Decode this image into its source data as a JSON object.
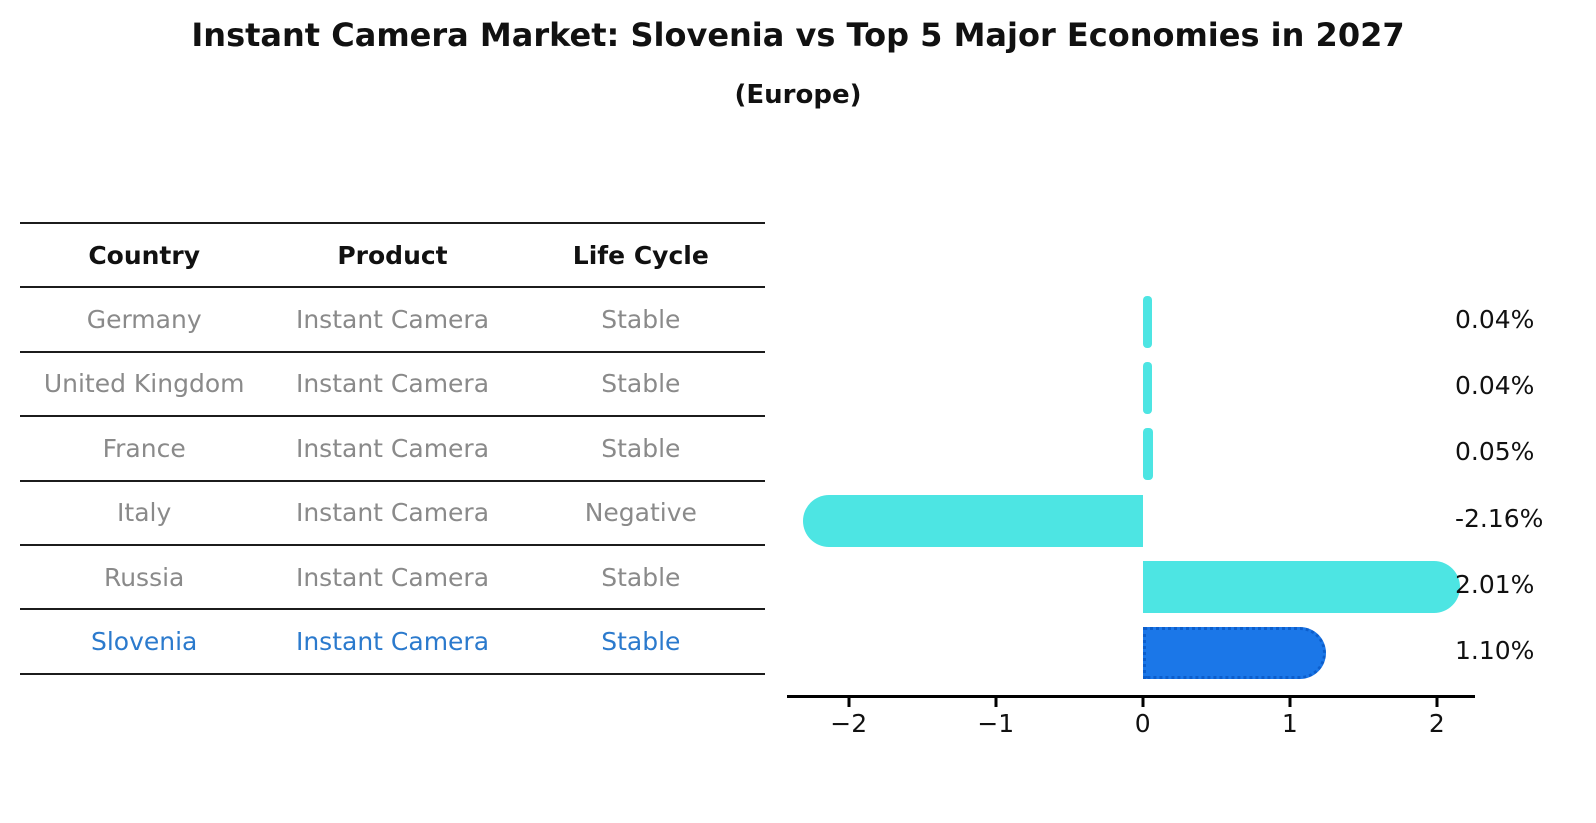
{
  "header": {
    "title": "Instant Camera Market: Slovenia vs Top 5 Major Economies in 2027",
    "subtitle": "(Europe)"
  },
  "table": {
    "headers": [
      "Country",
      "Product",
      "Life Cycle"
    ],
    "rows": [
      {
        "country": "Germany",
        "product": "Instant Camera",
        "life_cycle": "Stable"
      },
      {
        "country": "United Kingdom",
        "product": "Instant Camera",
        "life_cycle": "Stable"
      },
      {
        "country": "France",
        "product": "Instant Camera",
        "life_cycle": "Stable"
      },
      {
        "country": "Italy",
        "product": "Instant Camera",
        "life_cycle": "Negative"
      },
      {
        "country": "Russia",
        "product": "Instant Camera",
        "life_cycle": "Stable"
      },
      {
        "country": "Slovenia",
        "product": "Instant Camera",
        "life_cycle": "Stable"
      }
    ],
    "highlight_row": "Slovenia"
  },
  "chart_data": {
    "type": "bar",
    "orientation": "horizontal",
    "title": "Instant Camera Market: Slovenia vs Top 5 Major Economies in 2027",
    "subtitle": "(Europe)",
    "categories": [
      "Germany",
      "United Kingdom",
      "France",
      "Italy",
      "Russia",
      "Slovenia"
    ],
    "values": [
      0.04,
      0.04,
      0.05,
      -2.16,
      2.01,
      1.1
    ],
    "value_labels": [
      "0.04%",
      "0.04%",
      "0.05%",
      "-2.16%",
      "2.01%",
      "1.10%"
    ],
    "xlim": [
      -2.42,
      2.26
    ],
    "x_ticks": [
      -2,
      -1,
      0,
      1,
      2
    ],
    "x_tick_labels": [
      "−2",
      "−1",
      "0",
      "1",
      "2"
    ],
    "grid": false,
    "legend": "none",
    "bar_color_default": "#4de5e3",
    "bar_color_highlight": "#1b77e8",
    "highlight_index": 5
  }
}
